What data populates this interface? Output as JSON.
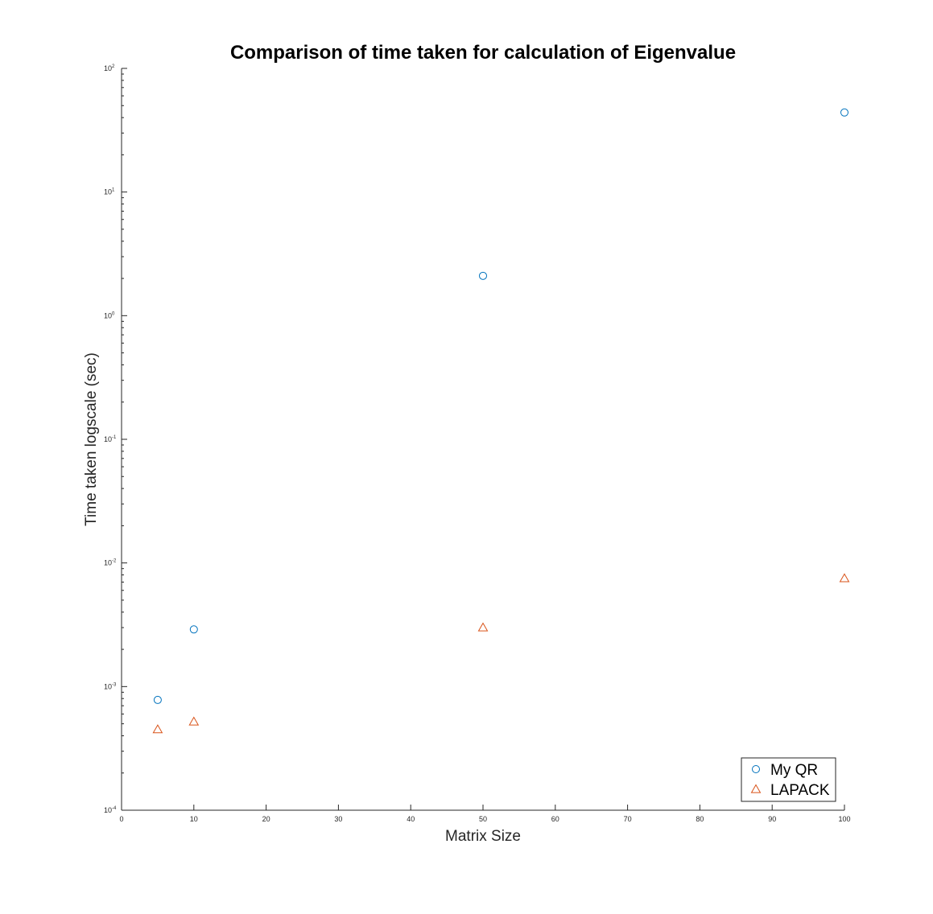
{
  "chart_data": {
    "type": "scatter",
    "title": "Comparison of time taken for calculation of Eigenvalue",
    "xlabel": "Matrix Size",
    "ylabel": "Time taken logscale (sec)",
    "xlim": [
      0,
      100
    ],
    "ylim": [
      0.0001,
      100
    ],
    "yscale": "log",
    "grid": false,
    "legend_position": "bottom-right",
    "x_ticks": [
      "0",
      "10",
      "20",
      "30",
      "40",
      "50",
      "60",
      "70",
      "80",
      "90",
      "100"
    ],
    "y_ticks": [
      {
        "base": "10",
        "exp": "-4",
        "value": 0.0001
      },
      {
        "base": "10",
        "exp": "-3",
        "value": 0.001
      },
      {
        "base": "10",
        "exp": "-2",
        "value": 0.01
      },
      {
        "base": "10",
        "exp": "-1",
        "value": 0.1
      },
      {
        "base": "10",
        "exp": "0",
        "value": 1
      },
      {
        "base": "10",
        "exp": "1",
        "value": 10
      },
      {
        "base": "10",
        "exp": "2",
        "value": 100
      }
    ],
    "series": [
      {
        "name": "My QR",
        "marker": "circle",
        "color": "#0072BD",
        "x": [
          5,
          10,
          50,
          100
        ],
        "y": [
          0.00078,
          0.0029,
          2.1,
          44
        ]
      },
      {
        "name": "LAPACK",
        "marker": "triangle",
        "color": "#D95319",
        "x": [
          5,
          10,
          50,
          100
        ],
        "y": [
          0.00045,
          0.00052,
          0.003,
          0.0075
        ]
      }
    ]
  }
}
